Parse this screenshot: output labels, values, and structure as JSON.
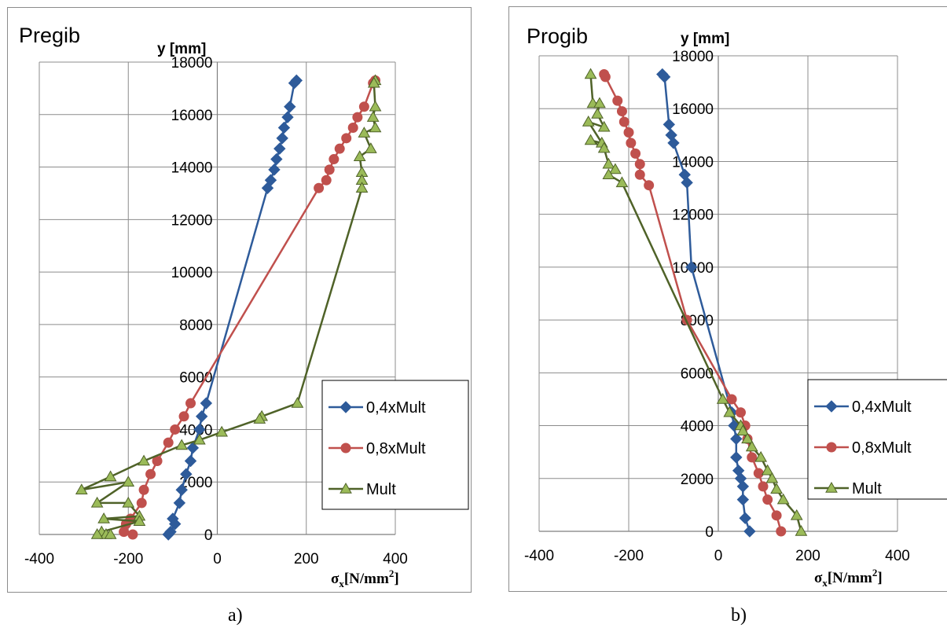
{
  "charts": [
    {
      "title": "Pregib",
      "ylabel": "y [mm]",
      "xlabel_main": "σ",
      "xlabel_sub": "x",
      "xlabel_unit": "[N/mm",
      "xlabel_sup": "2",
      "xlabel_close": "]",
      "caption": "a)"
    },
    {
      "title": "Progib",
      "ylabel": "y [mm]",
      "xlabel_main": "σ",
      "xlabel_sub": "x",
      "xlabel_unit": "[N/mm",
      "xlabel_sup": "2",
      "xlabel_close": "]",
      "caption": "b)"
    }
  ],
  "colors": {
    "s1": "#2e5b9a",
    "s2": "#c0504d",
    "s3": "#4f6228",
    "s3_fill": "#9bbb59",
    "grid": "#8c8c8c"
  },
  "chart_data": [
    {
      "type": "scatter",
      "title": "Pregib",
      "ylabel": "y [mm]",
      "xlabel": "σx[N/mm2]",
      "xlim": [
        -400,
        400
      ],
      "ylim": [
        0,
        18000
      ],
      "x_ticks": [
        -400,
        -200,
        0,
        200,
        400
      ],
      "y_ticks": [
        0,
        2000,
        4000,
        6000,
        8000,
        10000,
        12000,
        14000,
        16000,
        18000
      ],
      "grid": true,
      "legend_position": "bottom-right",
      "series": [
        {
          "name": "0,4xMult",
          "marker": "diamond",
          "points": [
            [
              178,
              17300
            ],
            [
              173,
              17200
            ],
            [
              163,
              16300
            ],
            [
              158,
              15900
            ],
            [
              150,
              15500
            ],
            [
              146,
              15100
            ],
            [
              140,
              14700
            ],
            [
              133,
              14300
            ],
            [
              128,
              13900
            ],
            [
              120,
              13500
            ],
            [
              113,
              13200
            ],
            [
              -25,
              5000
            ],
            [
              -35,
              4500
            ],
            [
              -40,
              4000
            ],
            [
              -55,
              3300
            ],
            [
              -60,
              2800
            ],
            [
              -70,
              2300
            ],
            [
              -80,
              1700
            ],
            [
              -85,
              1200
            ],
            [
              -100,
              600
            ],
            [
              -95,
              400
            ],
            [
              -105,
              100
            ],
            [
              -110,
              0
            ]
          ]
        },
        {
          "name": "0,8xMult",
          "marker": "circle",
          "points": [
            [
              355,
              17300
            ],
            [
              350,
              17200
            ],
            [
              330,
              16300
            ],
            [
              315,
              15900
            ],
            [
              305,
              15500
            ],
            [
              290,
              15100
            ],
            [
              275,
              14700
            ],
            [
              262,
              14300
            ],
            [
              252,
              13900
            ],
            [
              245,
              13500
            ],
            [
              228,
              13200
            ],
            [
              -60,
              5000
            ],
            [
              -75,
              4500
            ],
            [
              -95,
              4000
            ],
            [
              -110,
              3500
            ],
            [
              -135,
              2800
            ],
            [
              -150,
              2300
            ],
            [
              -165,
              1700
            ],
            [
              -170,
              1200
            ],
            [
              -195,
              600
            ],
            [
              -205,
              400
            ],
            [
              -210,
              100
            ],
            [
              -190,
              0
            ]
          ]
        },
        {
          "name": "Mult",
          "marker": "triangle",
          "points": [
            [
              355,
              17300
            ],
            [
              352,
              17200
            ],
            [
              355,
              16300
            ],
            [
              350,
              15900
            ],
            [
              355,
              15500
            ],
            [
              330,
              15300
            ],
            [
              345,
              14700
            ],
            [
              320,
              14400
            ],
            [
              325,
              13800
            ],
            [
              325,
              13500
            ],
            [
              325,
              13200
            ],
            [
              180,
              5000
            ],
            [
              100,
              4500
            ],
            [
              95,
              4400
            ],
            [
              10,
              3900
            ],
            [
              -40,
              3600
            ],
            [
              -80,
              3400
            ],
            [
              -165,
              2800
            ],
            [
              -240,
              2200
            ],
            [
              -305,
              1700
            ],
            [
              -200,
              2000
            ],
            [
              -270,
              1200
            ],
            [
              -200,
              1200
            ],
            [
              -175,
              700
            ],
            [
              -255,
              600
            ],
            [
              -175,
              500
            ],
            [
              -260,
              100
            ],
            [
              -250,
              0
            ],
            [
              -270,
              0
            ],
            [
              -240,
              0
            ]
          ]
        }
      ]
    },
    {
      "type": "scatter",
      "title": "Progib",
      "ylabel": "y [mm]",
      "xlabel": "σx[N/mm2]",
      "xlim": [
        -400,
        400
      ],
      "ylim": [
        0,
        18000
      ],
      "x_ticks": [
        -400,
        -200,
        0,
        200,
        400
      ],
      "y_ticks": [
        0,
        2000,
        4000,
        6000,
        8000,
        10000,
        12000,
        14000,
        16000,
        18000
      ],
      "grid": true,
      "legend_position": "bottom-right",
      "series": [
        {
          "name": "0,4xMult",
          "marker": "diamond",
          "points": [
            [
              -125,
              17300
            ],
            [
              -120,
              17200
            ],
            [
              -110,
              15400
            ],
            [
              -105,
              15000
            ],
            [
              -100,
              14700
            ],
            [
              -75,
              13500
            ],
            [
              -70,
              13200
            ],
            [
              -60,
              10000
            ],
            [
              30,
              4500
            ],
            [
              35,
              4000
            ],
            [
              40,
              3500
            ],
            [
              40,
              2800
            ],
            [
              45,
              2300
            ],
            [
              50,
              2000
            ],
            [
              55,
              1700
            ],
            [
              55,
              1200
            ],
            [
              60,
              500
            ],
            [
              70,
              0
            ]
          ]
        },
        {
          "name": "0,8xMult",
          "marker": "circle",
          "points": [
            [
              -255,
              17300
            ],
            [
              -252,
              17200
            ],
            [
              -225,
              16300
            ],
            [
              -215,
              15900
            ],
            [
              -210,
              15500
            ],
            [
              -200,
              15100
            ],
            [
              -195,
              14700
            ],
            [
              -185,
              14300
            ],
            [
              -175,
              13900
            ],
            [
              -175,
              13500
            ],
            [
              -155,
              13100
            ],
            [
              -70,
              8000
            ],
            [
              30,
              5000
            ],
            [
              50,
              4500
            ],
            [
              60,
              4000
            ],
            [
              65,
              3500
            ],
            [
              75,
              2800
            ],
            [
              90,
              2200
            ],
            [
              100,
              1700
            ],
            [
              110,
              1200
            ],
            [
              130,
              600
            ],
            [
              140,
              0
            ]
          ]
        },
        {
          "name": "Mult",
          "marker": "triangle",
          "points": [
            [
              -285,
              17300
            ],
            [
              -280,
              16200
            ],
            [
              -265,
              16200
            ],
            [
              -270,
              15800
            ],
            [
              -255,
              15300
            ],
            [
              -290,
              15500
            ],
            [
              -260,
              14700
            ],
            [
              -285,
              14800
            ],
            [
              -255,
              14500
            ],
            [
              -245,
              13900
            ],
            [
              -230,
              13700
            ],
            [
              -245,
              13500
            ],
            [
              -215,
              13200
            ],
            [
              10,
              5000
            ],
            [
              25,
              4500
            ],
            [
              50,
              4000
            ],
            [
              55,
              3800
            ],
            [
              65,
              3500
            ],
            [
              75,
              3200
            ],
            [
              95,
              2800
            ],
            [
              110,
              2300
            ],
            [
              120,
              2000
            ],
            [
              130,
              1600
            ],
            [
              145,
              1200
            ],
            [
              175,
              600
            ],
            [
              185,
              0
            ]
          ]
        }
      ]
    }
  ]
}
